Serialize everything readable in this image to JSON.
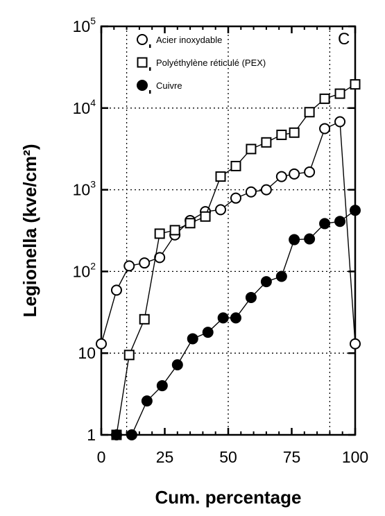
{
  "chart_data": {
    "type": "scatter",
    "panel_label": "C",
    "xlabel": "Cum. percentage",
    "ylabel": "Legionella (kve/cm²)",
    "xlim": [
      0,
      100
    ],
    "ylim": [
      1,
      100000
    ],
    "yscale": "log",
    "x_ticks": [
      0,
      25,
      50,
      75,
      100
    ],
    "y_ticks": [
      {
        "value": 1,
        "base": "1",
        "exp": ""
      },
      {
        "value": 10,
        "base": "10",
        "exp": ""
      },
      {
        "value": 100,
        "base": "10",
        "exp": "2"
      },
      {
        "value": 1000,
        "base": "10",
        "exp": "3"
      },
      {
        "value": 10000,
        "base": "10",
        "exp": "4"
      },
      {
        "value": 100000,
        "base": "10",
        "exp": "5"
      }
    ],
    "grid": "dotted",
    "legend_position": "top-left",
    "series": [
      {
        "name": "Acier inoxydable",
        "marker": "open-circle",
        "x": [
          0,
          6,
          11,
          17,
          23,
          29,
          35,
          41,
          47,
          53,
          59,
          65,
          71,
          76,
          82,
          88,
          94,
          100
        ],
        "y": [
          13,
          59,
          117,
          127,
          148,
          280,
          420,
          540,
          570,
          790,
          940,
          1000,
          1450,
          1560,
          1650,
          5600,
          6800,
          13
        ]
      },
      {
        "name": "Polyéthylène réticulé (PEX)",
        "marker": "open-square",
        "x": [
          6,
          11,
          17,
          23,
          29,
          35,
          41,
          47,
          53,
          59,
          65,
          71,
          76,
          82,
          88,
          94,
          100
        ],
        "y": [
          1,
          9.5,
          26,
          290,
          320,
          390,
          470,
          1450,
          1950,
          3150,
          3800,
          4700,
          5000,
          8900,
          13000,
          15000,
          19500
        ]
      },
      {
        "name": "Cuivre",
        "marker": "filled-circle",
        "x": [
          6,
          12,
          18,
          24,
          30,
          36,
          42,
          48,
          53,
          59,
          65,
          71,
          76,
          82,
          88,
          94,
          100
        ],
        "y": [
          1,
          1,
          2.6,
          4,
          7.2,
          15,
          18,
          27,
          27,
          48,
          75,
          87,
          245,
          250,
          385,
          410,
          560
        ]
      }
    ]
  }
}
